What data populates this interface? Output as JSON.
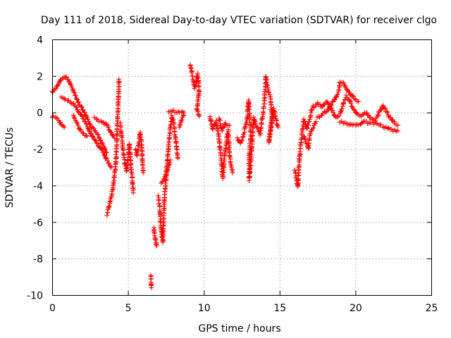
{
  "chart_data": {
    "type": "scatter",
    "title": "Day 111 of 2018, Sidereal Day-to-day VTEC variation (SDTVAR) for receiver clgo",
    "xlabel": "GPS time / hours",
    "ylabel": "SDTVAR / TECUs",
    "xlim": [
      0,
      25
    ],
    "ylim": [
      -10,
      4
    ],
    "xticks": [
      "0",
      "5",
      "10",
      "15",
      "20",
      "25"
    ],
    "yticks": [
      "4",
      "2",
      "0",
      "-2",
      "-4",
      "-6",
      "-8",
      "-10"
    ],
    "grid": true,
    "marker": "+",
    "color": "#ff0000",
    "series": [
      {
        "name": "SDTVAR",
        "tracks": [
          [
            [
              0.0,
              1.1
            ],
            [
              0.3,
              1.4
            ],
            [
              0.6,
              1.8
            ],
            [
              0.9,
              2.0
            ],
            [
              1.1,
              1.7
            ],
            [
              1.4,
              1.2
            ],
            [
              1.7,
              0.6
            ],
            [
              2.0,
              0.2
            ],
            [
              2.3,
              -0.3
            ],
            [
              2.6,
              -0.8
            ],
            [
              3.0,
              -1.2
            ],
            [
              3.3,
              -1.7
            ],
            [
              3.6,
              -2.2
            ]
          ],
          [
            [
              0.6,
              0.8
            ],
            [
              0.9,
              0.7
            ],
            [
              1.2,
              0.6
            ],
            [
              1.5,
              0.4
            ],
            [
              1.8,
              0.0
            ],
            [
              2.1,
              -0.4
            ],
            [
              2.4,
              -0.9
            ],
            [
              2.7,
              -1.4
            ],
            [
              3.0,
              -1.7
            ],
            [
              3.3,
              -2.1
            ],
            [
              3.6,
              -2.6
            ],
            [
              3.9,
              -3.0
            ]
          ],
          [
            [
              0.0,
              -0.2
            ],
            [
              0.3,
              -0.3
            ],
            [
              0.6,
              -0.6
            ],
            [
              0.8,
              -0.8
            ]
          ],
          [
            [
              1.4,
              -0.2
            ],
            [
              1.6,
              -0.5
            ],
            [
              1.8,
              -0.9
            ],
            [
              2.0,
              -1.1
            ],
            [
              2.3,
              -1.3
            ]
          ],
          [
            [
              2.8,
              -0.3
            ],
            [
              3.0,
              -0.4
            ],
            [
              3.3,
              -0.5
            ],
            [
              3.6,
              -0.7
            ],
            [
              3.9,
              -1.1
            ],
            [
              4.1,
              -1.4
            ]
          ],
          [
            [
              3.6,
              -5.6
            ],
            [
              3.8,
              -5.0
            ],
            [
              4.0,
              -4.2
            ],
            [
              4.1,
              -3.5
            ],
            [
              4.2,
              -2.8
            ],
            [
              4.25,
              -1.8
            ],
            [
              4.3,
              -0.6
            ],
            [
              4.35,
              0.4
            ],
            [
              4.4,
              1.2
            ],
            [
              4.4,
              1.8
            ]
          ],
          [
            [
              4.5,
              -0.6
            ],
            [
              4.6,
              -1.5
            ],
            [
              4.7,
              -2.2
            ],
            [
              4.8,
              -2.8
            ],
            [
              4.9,
              -3.2
            ],
            [
              5.0,
              -2.6
            ],
            [
              5.1,
              -1.7
            ],
            [
              5.2,
              -3.0
            ],
            [
              5.3,
              -3.8
            ],
            [
              5.35,
              -4.4
            ]
          ],
          [
            [
              5.5,
              -2.0
            ],
            [
              5.6,
              -2.4
            ],
            [
              5.7,
              -1.8
            ],
            [
              5.8,
              -1.1
            ],
            [
              5.9,
              -1.8
            ],
            [
              5.95,
              -2.6
            ],
            [
              6.0,
              -3.3
            ]
          ],
          [
            [
              6.5,
              -8.9
            ],
            [
              6.55,
              -9.6
            ]
          ],
          [
            [
              6.7,
              -6.3
            ],
            [
              6.8,
              -6.9
            ],
            [
              6.9,
              -7.3
            ]
          ],
          [
            [
              7.0,
              -4.6
            ],
            [
              7.1,
              -5.3
            ],
            [
              7.2,
              -6.5
            ],
            [
              7.3,
              -7.1
            ],
            [
              7.35,
              -6.0
            ],
            [
              7.4,
              -4.8
            ],
            [
              7.5,
              -3.6
            ],
            [
              7.6,
              -2.6
            ],
            [
              7.7,
              -1.6
            ],
            [
              7.8,
              -0.8
            ],
            [
              7.9,
              -0.2
            ],
            [
              8.0,
              -0.5
            ],
            [
              8.1,
              -1.2
            ],
            [
              8.2,
              -1.9
            ],
            [
              8.3,
              -2.5
            ]
          ],
          [
            [
              7.2,
              -3.9
            ],
            [
              7.4,
              -3.6
            ],
            [
              7.6,
              -3.2
            ],
            [
              7.8,
              -2.6
            ]
          ],
          [
            [
              7.7,
              0.1
            ],
            [
              8.7,
              0.0
            ],
            [
              8.4,
              -0.8
            ]
          ],
          [
            [
              9.1,
              2.6
            ],
            [
              9.2,
              2.2
            ],
            [
              9.3,
              1.7
            ],
            [
              9.4,
              1.3
            ],
            [
              9.5,
              1.7
            ],
            [
              9.6,
              2.1
            ],
            [
              9.7,
              1.2
            ],
            [
              9.55,
              0.2
            ],
            [
              9.7,
              -0.2
            ]
          ],
          [
            [
              10.4,
              -0.2
            ],
            [
              10.5,
              -0.6
            ],
            [
              10.6,
              -0.9
            ],
            [
              10.8,
              -0.5
            ],
            [
              11.0,
              -1.3
            ],
            [
              11.1,
              -2.2
            ],
            [
              11.2,
              -3.0
            ],
            [
              11.25,
              -3.6
            ],
            [
              11.35,
              -2.6
            ],
            [
              11.5,
              -1.6
            ],
            [
              11.6,
              -1.0
            ],
            [
              11.7,
              -2.4
            ],
            [
              11.8,
              -2.9
            ],
            [
              11.9,
              -3.3
            ]
          ],
          [
            [
              11.0,
              -0.3
            ],
            [
              11.2,
              -1.0
            ],
            [
              11.4,
              -0.6
            ],
            [
              11.7,
              -0.7
            ]
          ],
          [
            [
              12.2,
              -1.4
            ],
            [
              12.4,
              -1.7
            ],
            [
              12.6,
              -1.3
            ],
            [
              12.8,
              -0.6
            ],
            [
              12.9,
              0.0
            ],
            [
              12.95,
              0.7
            ],
            [
              13.05,
              -0.6
            ],
            [
              13.1,
              -1.3
            ],
            [
              13.0,
              -2.2
            ],
            [
              13.0,
              -3.7
            ],
            [
              13.3,
              -0.3
            ],
            [
              13.5,
              -0.8
            ],
            [
              13.7,
              -1.2
            ],
            [
              13.9,
              -0.1
            ],
            [
              14.0,
              0.6
            ],
            [
              14.05,
              1.3
            ],
            [
              14.1,
              2.0
            ],
            [
              14.2,
              1.4
            ],
            [
              14.4,
              0.8
            ],
            [
              14.5,
              -0.2
            ],
            [
              14.3,
              -1.6
            ],
            [
              14.6,
              0.2
            ],
            [
              14.8,
              -0.5
            ],
            [
              14.9,
              -0.8
            ]
          ],
          [
            [
              16.0,
              -3.1
            ],
            [
              16.1,
              -3.6
            ],
            [
              16.2,
              -4.1
            ],
            [
              16.3,
              -2.6
            ],
            [
              16.4,
              -1.7
            ],
            [
              16.5,
              -1.0
            ],
            [
              16.6,
              -0.4
            ],
            [
              16.7,
              -0.7
            ],
            [
              16.8,
              -0.9
            ],
            [
              17.0,
              -0.3
            ],
            [
              17.2,
              0.3
            ],
            [
              17.5,
              0.5
            ],
            [
              17.8,
              0.3
            ],
            [
              18.1,
              0.6
            ],
            [
              18.4,
              0.2
            ],
            [
              18.7,
              -0.3
            ],
            [
              19.0,
              -0.1
            ],
            [
              19.2,
              0.5
            ],
            [
              19.4,
              0.9
            ],
            [
              19.6,
              0.7
            ],
            [
              19.8,
              0.3
            ],
            [
              20.1,
              -0.1
            ],
            [
              20.4,
              -0.2
            ],
            [
              20.7,
              0.0
            ],
            [
              21.0,
              -0.3
            ],
            [
              21.3,
              -0.4
            ],
            [
              21.5,
              -0.1
            ],
            [
              21.8,
              0.4
            ],
            [
              22.0,
              0.1
            ],
            [
              22.3,
              -0.3
            ],
            [
              22.6,
              -0.6
            ],
            [
              22.8,
              -0.7
            ]
          ],
          [
            [
              17.5,
              -0.3
            ],
            [
              17.8,
              -0.1
            ],
            [
              18.1,
              0.1
            ],
            [
              18.4,
              0.4
            ],
            [
              18.7,
              0.8
            ],
            [
              18.9,
              1.2
            ],
            [
              19.0,
              1.7
            ],
            [
              19.2,
              1.6
            ],
            [
              19.5,
              1.2
            ],
            [
              19.8,
              0.9
            ],
            [
              20.0,
              0.7
            ],
            [
              20.2,
              0.6
            ]
          ],
          [
            [
              19.0,
              -0.5
            ],
            [
              19.3,
              -0.6
            ],
            [
              19.6,
              -0.7
            ],
            [
              19.9,
              -0.6
            ],
            [
              20.3,
              -0.7
            ],
            [
              20.6,
              -0.5
            ],
            [
              21.0,
              -0.6
            ],
            [
              21.3,
              -0.6
            ],
            [
              21.6,
              -0.7
            ],
            [
              21.9,
              -0.8
            ],
            [
              22.2,
              -0.9
            ],
            [
              22.5,
              -1.0
            ],
            [
              22.8,
              -1.0
            ]
          ],
          [
            [
              16.6,
              -1.3
            ],
            [
              16.9,
              -2.0
            ],
            [
              17.0,
              -1.2
            ],
            [
              17.4,
              -0.5
            ]
          ]
        ]
      }
    ]
  }
}
